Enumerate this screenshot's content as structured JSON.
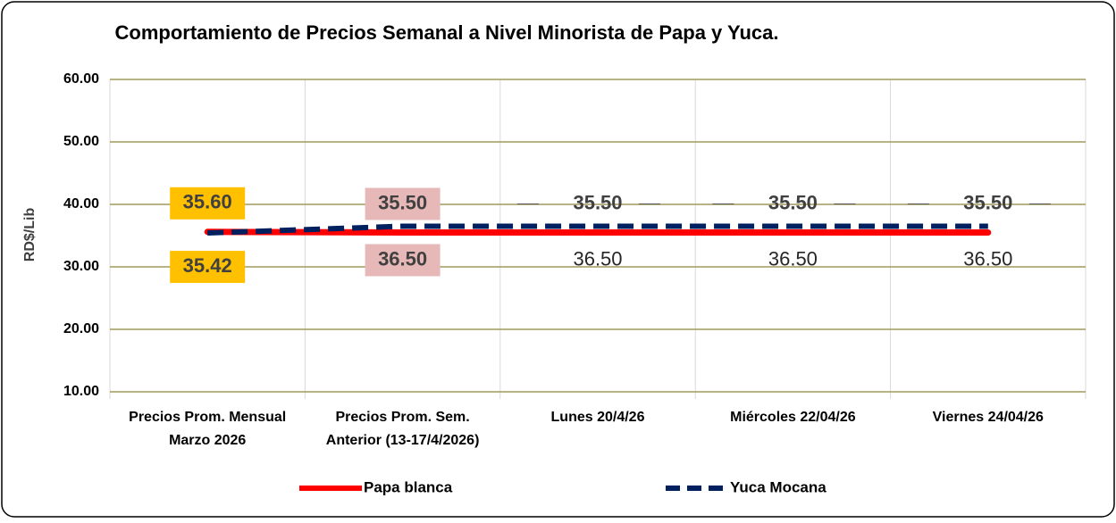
{
  "chart_data": {
    "type": "line",
    "title": "Comportamiento de Precios Semanal a Nivel Minorista de Papa y Yuca.",
    "y_label": "RD$/Lib",
    "categories": [
      [
        "Precios Prom. Mensual",
        "Marzo 2026"
      ],
      [
        "Precios Prom. Sem.",
        "Anterior (13-17/4/2026)"
      ],
      [
        "Lunes 20/4/26"
      ],
      [
        "Miércoles 22/04/26"
      ],
      [
        "Viernes  24/04/26"
      ]
    ],
    "series": [
      {
        "name": "Papa blanca",
        "color": "#ff0000",
        "dash": false,
        "values": [
          35.6,
          35.5,
          35.5,
          35.5,
          35.5
        ],
        "value_labels": [
          "35.60",
          "35.50",
          "35.50",
          "35.50",
          "35.50"
        ]
      },
      {
        "name": "Yuca Mocana",
        "color": "#002060",
        "dash": true,
        "values": [
          35.42,
          36.5,
          36.5,
          36.5,
          36.5
        ],
        "value_labels": [
          "35.42",
          "36.50",
          "36.50",
          "36.50",
          "36.50"
        ]
      }
    ],
    "ylim": [
      10,
      60
    ],
    "yticks": [
      {
        "value": 10,
        "label": "10.00"
      },
      {
        "value": 20,
        "label": "20.00"
      },
      {
        "value": 30,
        "label": "30.00"
      },
      {
        "value": 40,
        "label": "40.00"
      },
      {
        "value": 50,
        "label": "50.00"
      },
      {
        "value": 60,
        "label": "60.00"
      }
    ],
    "grid": true,
    "legend": "bottom"
  }
}
